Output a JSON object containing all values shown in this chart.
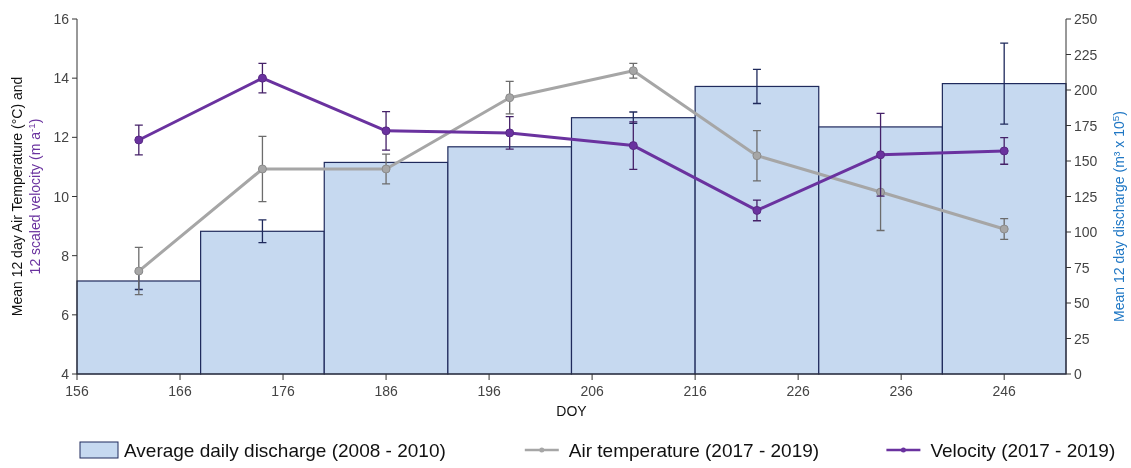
{
  "chart_data": {
    "type": "line",
    "xlabel": "DOY",
    "ylabel": "Mean 12 day Air Temperature (°C) and 12 scaled velocity (m a$^{-1}$)",
    "y2label": "Mean 12 day  discharge (m³ x 10$^{5}$)",
    "x": [
      162,
      174,
      186,
      198,
      210,
      222,
      234,
      246
    ],
    "xlim": [
      156,
      252
    ],
    "xticks": [
      156,
      166,
      176,
      186,
      196,
      206,
      216,
      226,
      236,
      246
    ],
    "ylim": [
      4,
      16
    ],
    "yticks": [
      4,
      6,
      8,
      10,
      12,
      14,
      16
    ],
    "y2lim": [
      0,
      250
    ],
    "y2ticks": [
      0,
      25,
      50,
      75,
      100,
      125,
      150,
      175,
      200,
      225,
      250
    ],
    "marker": "circle",
    "legend": "bottom",
    "grid": false,
    "series": [
      {
        "name": "Average daily discharge (2008 - 2010)",
        "type": "bar",
        "axis": "y2",
        "color": "#c6d9f0",
        "values": [
          65.5,
          100.5,
          149,
          160,
          180.5,
          202.5,
          174,
          204.5
        ],
        "errors": [
          6,
          8,
          null,
          null,
          4,
          12,
          null,
          28.5
        ]
      },
      {
        "name": "Air temperature (2017 - 2019)",
        "color": "#a6a6a6",
        "values": [
          7.48,
          10.93,
          10.93,
          13.34,
          14.25,
          11.38,
          10.15,
          8.9
        ],
        "errors": [
          0.8,
          1.1,
          0.5,
          0.55,
          0.25,
          0.85,
          1.3,
          0.35
        ]
      },
      {
        "name": "Velocity (2017 - 2019)",
        "color": "#6a329f",
        "values": [
          11.91,
          14.0,
          12.22,
          12.15,
          11.72,
          9.53,
          11.41,
          11.54
        ],
        "errors": [
          0.5,
          0.5,
          0.65,
          0.55,
          0.8,
          0.35,
          1.4,
          0.45
        ]
      }
    ]
  }
}
